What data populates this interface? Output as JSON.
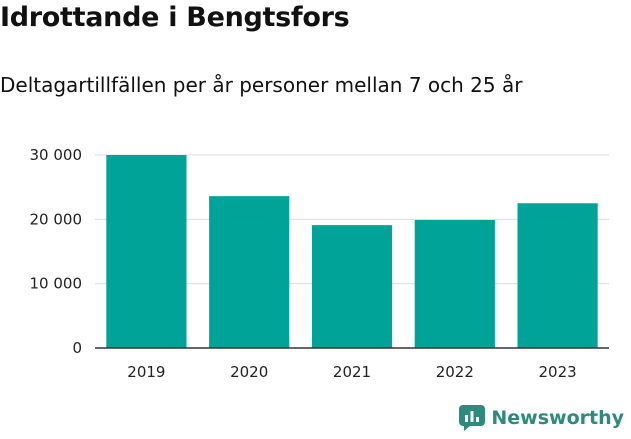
{
  "header": {
    "title": "Idrottande i Bengtsfors",
    "subtitle": "Deltagartillfällen per år personer mellan 7 och 25 år"
  },
  "brand": {
    "name": "Newsworthy",
    "icon": "newsworthy-logo-icon",
    "color": "#2e8a7d"
  },
  "chart_data": {
    "type": "bar",
    "categories": [
      "2019",
      "2020",
      "2021",
      "2022",
      "2023"
    ],
    "values": [
      30000,
      23600,
      19100,
      19900,
      22500
    ],
    "ylim": [
      0,
      30000
    ],
    "yticks": [
      0,
      10000,
      20000,
      30000
    ],
    "ytick_labels": [
      "0",
      "10 000",
      "20 000",
      "30 000"
    ],
    "grid": true,
    "bar_color": "#00a398",
    "grid_color": "#dcdcdc"
  }
}
